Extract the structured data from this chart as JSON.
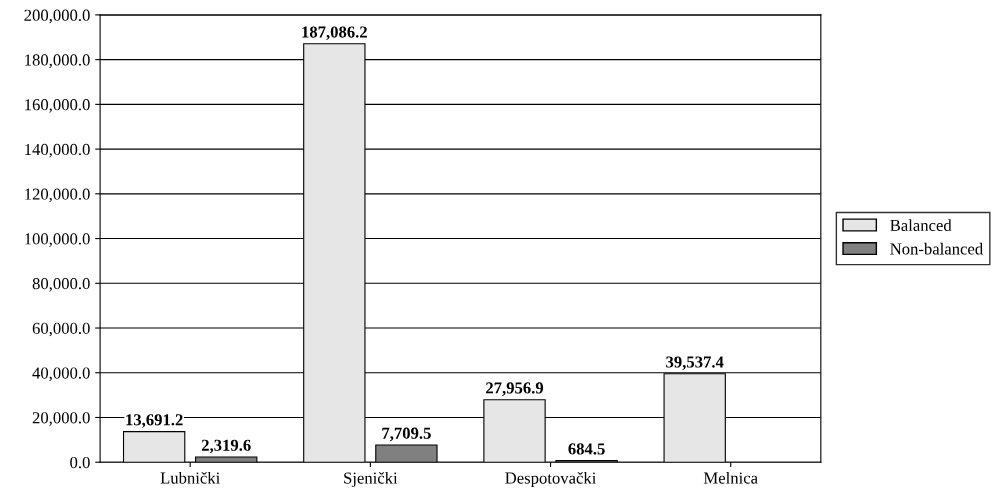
{
  "chart_data": {
    "type": "bar",
    "categories": [
      "Lubnički",
      "Sjenički",
      "Despotovački",
      "Melnica"
    ],
    "series": [
      {
        "name": "Balanced",
        "color": "#e6e6e6",
        "values": [
          13691.2,
          187086.2,
          27956.9,
          39537.4
        ],
        "value_labels": [
          "13,691.2",
          "187,086.2",
          "27,956.9",
          "39,537.4"
        ]
      },
      {
        "name": "Non-balanced",
        "color": "#808080",
        "values": [
          2319.6,
          7709.5,
          684.5,
          null
        ],
        "value_labels": [
          "2,319.6",
          "7,709.5",
          "684.5",
          null
        ]
      }
    ],
    "ylim": [
      0,
      200000
    ],
    "yticks": [
      {
        "value": 0,
        "label": "0.0"
      },
      {
        "value": 20000,
        "label": "20,000.0"
      },
      {
        "value": 40000,
        "label": "40,000.0"
      },
      {
        "value": 60000,
        "label": "60,000.0"
      },
      {
        "value": 80000,
        "label": "80,000.0"
      },
      {
        "value": 100000,
        "label": "100,000.0"
      },
      {
        "value": 120000,
        "label": "120,000.0"
      },
      {
        "value": 140000,
        "label": "140,000.0"
      },
      {
        "value": 160000,
        "label": "160,000.0"
      },
      {
        "value": 180000,
        "label": "180,000.0"
      },
      {
        "value": 200000,
        "label": "200,000.0"
      }
    ],
    "grid": "y",
    "legend": "right"
  }
}
